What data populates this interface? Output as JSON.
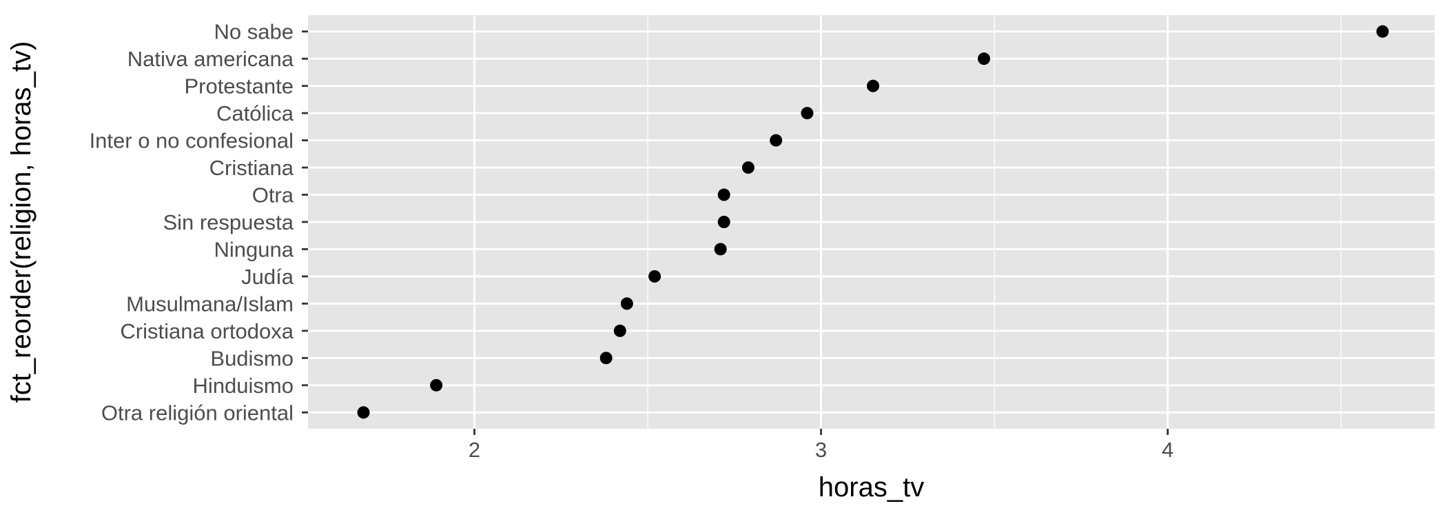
{
  "chart_data": {
    "type": "scatter",
    "title": "",
    "xlabel": "horas_tv",
    "ylabel": "fct_reorder(religion, horas_tv)",
    "xlim": [
      1.52,
      4.77
    ],
    "x_ticks": [
      2,
      3,
      4
    ],
    "x_tick_labels": [
      "2",
      "3",
      "4"
    ],
    "categories": [
      "Otra religión oriental",
      "Hinduismo",
      "Budismo",
      "Cristiana ortodoxa",
      "Musulmana/Islam",
      "Judía",
      "Ninguna",
      "Sin respuesta",
      "Otra",
      "Cristiana",
      "Inter o no confesional",
      "Católica",
      "Protestante",
      "Nativa americana",
      "No sabe"
    ],
    "values": [
      1.68,
      1.89,
      2.38,
      2.42,
      2.44,
      2.52,
      2.71,
      2.72,
      2.72,
      2.79,
      2.87,
      2.96,
      3.15,
      3.47,
      4.62
    ],
    "grid": true,
    "legend": "none",
    "colors": {
      "panel_background": "#e5e5e5",
      "gridline": "#ffffff",
      "point": "#000000",
      "tick_text": "#4d4d4d",
      "tick_mark": "#333333",
      "axis_title": "#000000"
    }
  }
}
